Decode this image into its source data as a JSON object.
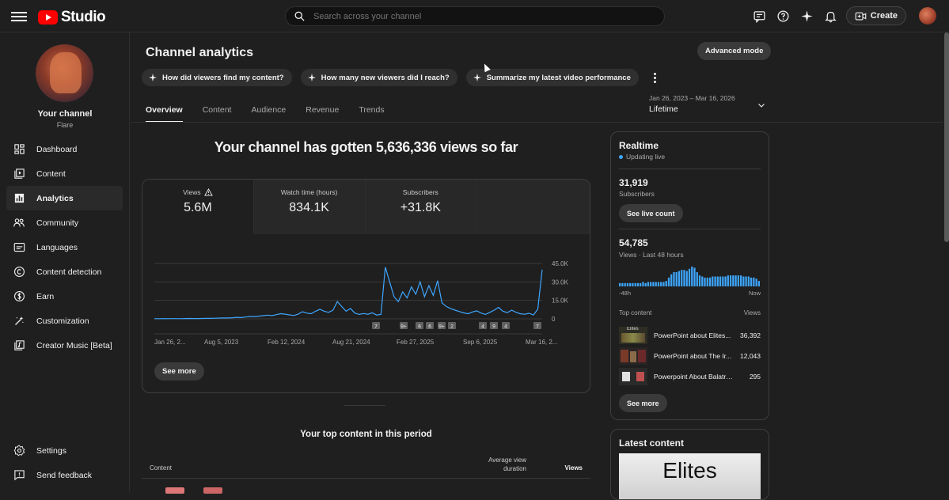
{
  "app": {
    "logo_text": "Studio",
    "search_placeholder": "Search across your channel",
    "create_label": "Create"
  },
  "sidebar": {
    "channel_name": "Your channel",
    "channel_handle": "Flare",
    "items": [
      {
        "label": "Dashboard",
        "icon": "dashboard-icon",
        "active": false
      },
      {
        "label": "Content",
        "icon": "content-icon",
        "active": false
      },
      {
        "label": "Analytics",
        "icon": "analytics-icon",
        "active": true
      },
      {
        "label": "Community",
        "icon": "community-icon",
        "active": false
      },
      {
        "label": "Languages",
        "icon": "languages-icon",
        "active": false
      },
      {
        "label": "Content detection",
        "icon": "copyright-icon",
        "active": false
      },
      {
        "label": "Earn",
        "icon": "earn-icon",
        "active": false
      },
      {
        "label": "Customization",
        "icon": "customization-icon",
        "active": false
      },
      {
        "label": "Creator Music [Beta]",
        "icon": "creator-music-icon",
        "active": false
      }
    ],
    "bottom_items": [
      {
        "label": "Settings",
        "icon": "settings-icon"
      },
      {
        "label": "Send feedback",
        "icon": "feedback-icon"
      }
    ]
  },
  "main": {
    "title": "Channel analytics",
    "advanced_mode_label": "Advanced mode",
    "chips": [
      "How did viewers find my content?",
      "How many new viewers did I reach?",
      "Summarize my latest video performance"
    ],
    "tabs": [
      "Overview",
      "Content",
      "Audience",
      "Revenue",
      "Trends"
    ],
    "active_tab": "Overview",
    "date_range": {
      "range": "Jan 26, 2023 – Mar 16, 2026",
      "label": "Lifetime"
    },
    "headline": "Your channel has gotten 5,636,336 views so far",
    "metrics": [
      {
        "label": "Views",
        "value": "5.6M"
      },
      {
        "label": "Watch time (hours)",
        "value": "834.1K"
      },
      {
        "label": "Subscribers",
        "value": "+31.8K"
      }
    ],
    "see_more_label": "See more",
    "top_content_title": "Your top content in this period",
    "table_headers": {
      "content": "Content",
      "avg_line1": "Average view",
      "avg_line2": "duration",
      "views": "Views"
    }
  },
  "chart_data": {
    "type": "line",
    "y_tick_labels": [
      "45.0K",
      "30.0K",
      "15.0K",
      "0"
    ],
    "ylim": [
      0,
      45000
    ],
    "x_tick_labels": [
      "Jan 26, 2...",
      "Aug 5, 2023",
      "Feb 12, 2024",
      "Aug 21, 2024",
      "Feb 27, 2025",
      "Sep 6, 2025",
      "Mar 16, 2..."
    ],
    "series_color": "#3ea6ff",
    "markers": [
      "7",
      "9+",
      "6",
      "6",
      "9+",
      "2",
      "4",
      "9",
      "4",
      "7"
    ],
    "series": [
      {
        "values": [
          100,
          150,
          200,
          120,
          180,
          220,
          160,
          250,
          300,
          280,
          240,
          350,
          420,
          380,
          500,
          620,
          700,
          680,
          900,
          1200,
          1000,
          1500,
          1900,
          1700,
          2200,
          2600,
          3000,
          2600,
          3400,
          4200,
          3800,
          3200,
          2700,
          3800,
          5800,
          4600,
          4200,
          6200,
          7800,
          6200,
          5300,
          7000,
          14000,
          10000,
          6200,
          8400,
          4700,
          3600,
          4300,
          3700,
          4900,
          3100,
          3600,
          42000,
          30000,
          18000,
          14000,
          22000,
          17000,
          26000,
          20000,
          30000,
          18000,
          27000,
          19000,
          31000,
          13000,
          10000,
          8300,
          7100,
          5900,
          4800,
          4100,
          5600,
          6500,
          4600,
          3600,
          5300,
          7100,
          9300,
          6100,
          5100,
          7100,
          5300,
          4100,
          3700,
          4500,
          3100,
          8000,
          40000
        ]
      }
    ]
  },
  "realtime": {
    "title": "Realtime",
    "live_label": "Updating live",
    "subscribers_value": "31,919",
    "subscribers_label": "Subscribers",
    "see_live_count_label": "See live count",
    "views_value": "54,785",
    "views_label": "Views · Last 48 hours",
    "bars": [
      3,
      3,
      3,
      3,
      3,
      3,
      3,
      3,
      3,
      4,
      3,
      4,
      4,
      4,
      4,
      4,
      4,
      4,
      5,
      8,
      11,
      13,
      13,
      14,
      15,
      15,
      14,
      16,
      18,
      17,
      13,
      10,
      9,
      8,
      8,
      8,
      9,
      9,
      9,
      9,
      9,
      9,
      10,
      10,
      10,
      10,
      10,
      10,
      9,
      9,
      9,
      8,
      8,
      7,
      5
    ],
    "axis_left": "-48h",
    "axis_right": "Now",
    "top_content_label": "Top content",
    "top_content_views_label": "Views",
    "items": [
      {
        "title": "PowerPoint about Elites...",
        "views": "36,392",
        "thumb_text": "Elites"
      },
      {
        "title": "PowerPoint about The Ir...",
        "views": "12,043",
        "thumb_text": ""
      },
      {
        "title": "Powerpoint About Balatro ...",
        "views": "295",
        "thumb_text": ""
      }
    ],
    "see_more_label": "See more"
  },
  "latest": {
    "title": "Latest content",
    "thumb_text": "Elites"
  }
}
